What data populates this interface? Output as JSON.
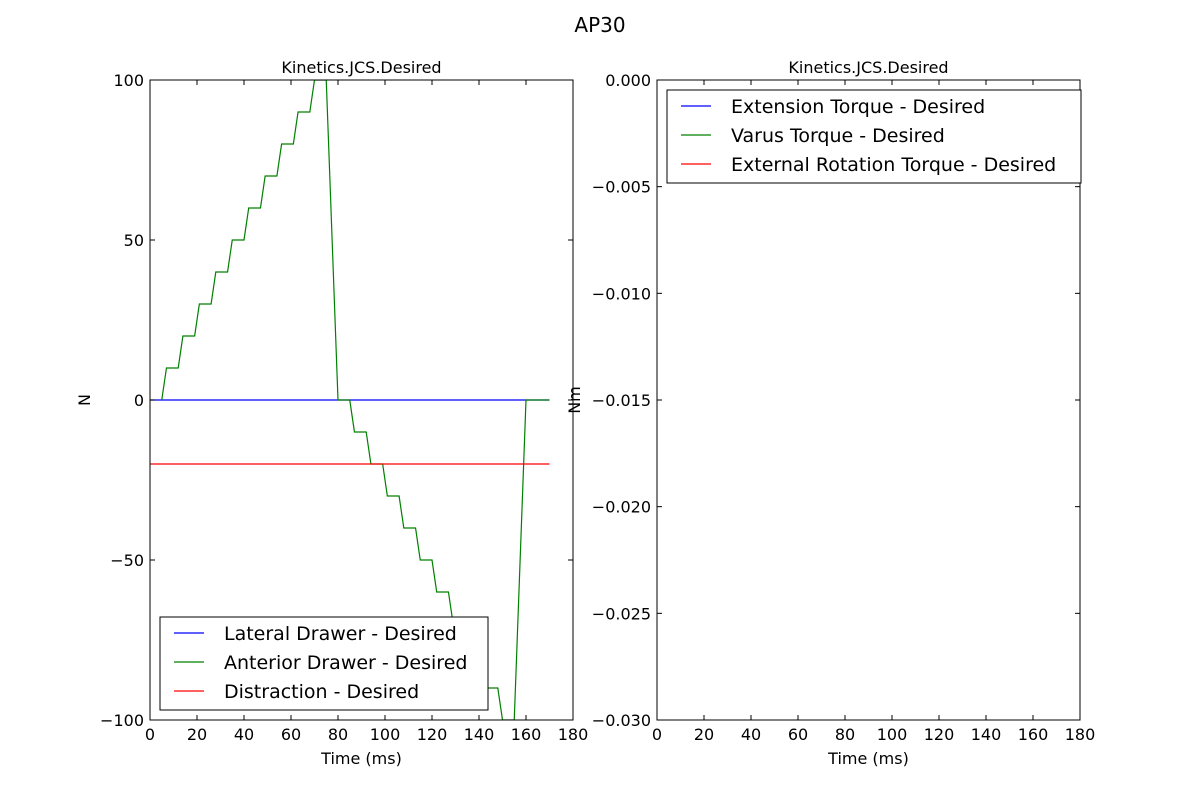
{
  "figure_title": "AP30",
  "chart_data": [
    {
      "type": "line",
      "title": "Kinetics.JCS.Desired",
      "xlabel": "Time (ms)",
      "ylabel": "N",
      "xlim": [
        0,
        180
      ],
      "ylim": [
        -100,
        100
      ],
      "xticks": [
        0,
        20,
        40,
        60,
        80,
        100,
        120,
        140,
        160,
        180
      ],
      "yticks": [
        -100,
        -50,
        0,
        50,
        100
      ],
      "ytick_labels": [
        "−100",
        "−50",
        "0",
        "50",
        "100"
      ],
      "grid": false,
      "legend_position": "lower-left",
      "series": [
        {
          "name": "Lateral Drawer - Desired",
          "color": "#0000ff",
          "x": [
            0,
            170
          ],
          "y": [
            0,
            0
          ]
        },
        {
          "name": "Anterior Drawer - Desired",
          "color": "#008000",
          "x": [
            5,
            7,
            12,
            14,
            19,
            21,
            26,
            28,
            33,
            35,
            40,
            42,
            47,
            49,
            54,
            56,
            61,
            63,
            68,
            70,
            75,
            80,
            85,
            87,
            92,
            94,
            99,
            101,
            106,
            108,
            113,
            115,
            120,
            122,
            127,
            129,
            134,
            136,
            141,
            143,
            148,
            150,
            155,
            160,
            170
          ],
          "y": [
            0,
            10,
            10,
            20,
            20,
            30,
            30,
            40,
            40,
            50,
            50,
            60,
            60,
            70,
            70,
            80,
            80,
            90,
            90,
            100,
            100,
            0,
            0,
            -10,
            -10,
            -20,
            -20,
            -30,
            -30,
            -40,
            -40,
            -50,
            -50,
            -60,
            -60,
            -70,
            -70,
            -80,
            -80,
            -90,
            -90,
            -100,
            -100,
            0,
            0
          ]
        },
        {
          "name": "Distraction - Desired",
          "color": "#ff0000",
          "x": [
            0,
            170
          ],
          "y": [
            -20,
            -20
          ]
        }
      ]
    },
    {
      "type": "line",
      "title": "Kinetics.JCS.Desired",
      "xlabel": "Time (ms)",
      "ylabel": "Nm",
      "xlim": [
        0,
        180
      ],
      "ylim": [
        -0.03,
        0.0
      ],
      "xticks": [
        0,
        20,
        40,
        60,
        80,
        100,
        120,
        140,
        160,
        180
      ],
      "yticks": [
        -0.03,
        -0.025,
        -0.02,
        -0.015,
        -0.01,
        -0.005,
        0.0
      ],
      "ytick_labels": [
        "−0.030",
        "−0.025",
        "−0.020",
        "−0.015",
        "−0.010",
        "−0.005",
        "0.000"
      ],
      "grid": false,
      "legend_position": "upper-right",
      "series": [
        {
          "name": "Extension Torque - Desired",
          "color": "#0000ff",
          "x": [],
          "y": []
        },
        {
          "name": "Varus Torque - Desired",
          "color": "#008000",
          "x": [],
          "y": []
        },
        {
          "name": "External Rotation Torque - Desired",
          "color": "#ff0000",
          "x": [],
          "y": []
        }
      ]
    }
  ]
}
